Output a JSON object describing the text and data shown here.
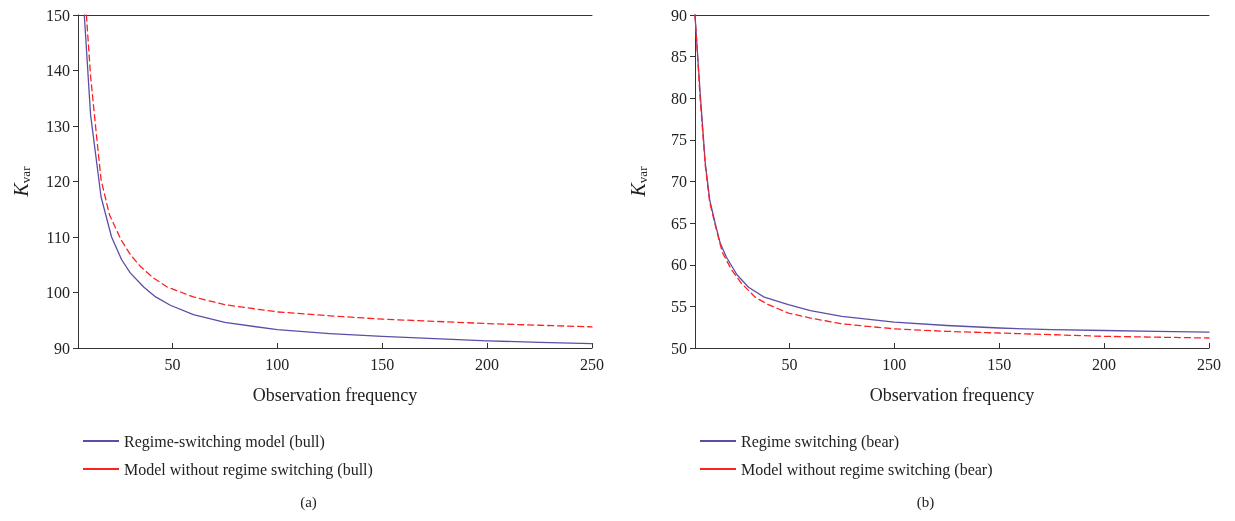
{
  "chart_data": [
    {
      "type": "line",
      "xlabel": "Observation frequency",
      "ylabel": "K$_{var}$",
      "xlim": [
        5,
        250
      ],
      "ylim": [
        90,
        150
      ],
      "xticks": [
        50,
        100,
        150,
        200,
        250
      ],
      "yticks": [
        90,
        100,
        110,
        120,
        130,
        140,
        150
      ],
      "legend": "bottom",
      "grid": false,
      "annotations": [
        "(a)"
      ],
      "series": [
        {
          "name": "Regime-switching model (bull)",
          "color": "#5b4ea8",
          "line_style": "solid",
          "x": [
            8,
            11,
            16,
            21,
            25.8,
            30,
            36.3,
            42,
            49,
            60,
            75,
            100,
            125,
            150,
            175,
            200,
            225,
            250
          ],
          "values": [
            150,
            132,
            117.2,
            110,
            105.9,
            103.5,
            101,
            99.2,
            97.7,
            96,
            94.6,
            93.3,
            92.6,
            92.1,
            91.7,
            91.3,
            91,
            90.8
          ]
        },
        {
          "name": "Model without regime switching (bull)",
          "color": "#ff2020",
          "line_style": "dashed",
          "x": [
            9,
            11,
            13.7,
            16,
            20,
            25.5,
            30,
            35,
            41,
            47.5,
            60,
            75,
            100,
            125,
            150,
            175,
            200,
            225,
            250
          ],
          "values": [
            150,
            139,
            128.7,
            120.3,
            114,
            109.5,
            106.8,
            104.6,
            102.6,
            101,
            99.2,
            97.8,
            96.5,
            95.8,
            95.2,
            94.8,
            94.4,
            94.1,
            93.8
          ]
        }
      ]
    },
    {
      "type": "line",
      "xlabel": "Observation frequency",
      "ylabel": "K$_{var}$",
      "xlim": [
        5,
        250
      ],
      "ylim": [
        50,
        90
      ],
      "xticks": [
        50,
        100,
        150,
        200,
        250
      ],
      "yticks": [
        50,
        55,
        60,
        65,
        70,
        75,
        80,
        85,
        90
      ],
      "legend": "bottom",
      "grid": false,
      "annotations": [
        "(b)"
      ],
      "series": [
        {
          "name": "Regime switching (bear)",
          "color": "#5b4ea8",
          "line_style": "solid",
          "x": [
            5,
            7.5,
            9.9,
            12,
            14.8,
            17,
            20,
            25,
            30.5,
            38,
            49.5,
            60,
            75,
            100,
            125,
            150,
            175,
            200,
            225,
            250
          ],
          "values": [
            90,
            80.5,
            72.2,
            67.8,
            64.8,
            62.6,
            60.9,
            58.8,
            57.3,
            56.1,
            55.2,
            54.5,
            53.8,
            53.1,
            52.7,
            52.4,
            52.2,
            52.1,
            52,
            51.9
          ]
        },
        {
          "name": "Model without regime switching (bear)",
          "color": "#ff2020",
          "line_style": "dashed",
          "x": [
            5,
            7.5,
            9.9,
            12,
            15.2,
            18,
            22.4,
            27,
            33.7,
            40,
            49.5,
            60,
            75,
            100,
            125,
            150,
            175,
            200,
            225,
            250
          ],
          "values": [
            90,
            79.8,
            71.9,
            67.5,
            64.2,
            61.5,
            59.4,
            57.8,
            56.1,
            55.2,
            54.2,
            53.6,
            52.9,
            52.3,
            52,
            51.8,
            51.6,
            51.4,
            51.3,
            51.2
          ]
        }
      ]
    }
  ]
}
